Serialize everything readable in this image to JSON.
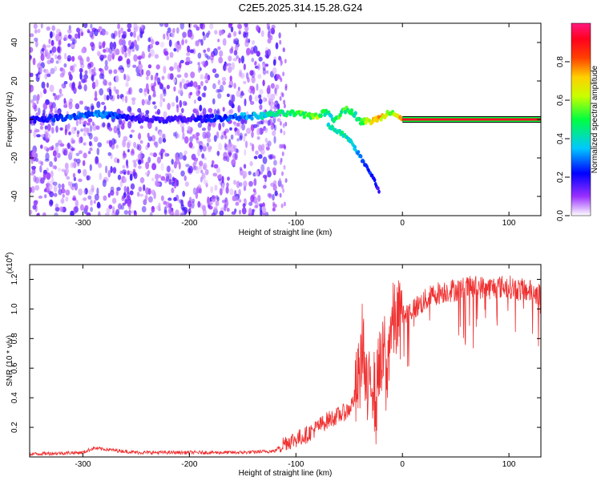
{
  "page": {
    "title": "C2E5.2025.314.15.28.G24"
  },
  "chart_data": [
    {
      "type": "heatmap",
      "title": "C2E5.2025.314.15.28.G24",
      "xlabel": "Height of straight line (km)",
      "ylabel": "Frequency (Hz)",
      "xlim": [
        -350,
        130
      ],
      "ylim": [
        -50,
        50
      ],
      "x_ticks": [
        -300,
        -200,
        -100,
        0,
        100
      ],
      "x_tick_labels": [
        "-300",
        "-200",
        "-100",
        "0",
        "100"
      ],
      "y_ticks": [
        -40,
        -20,
        0,
        20,
        40
      ],
      "y_tick_labels": [
        "-40",
        "-20",
        "0",
        "20",
        "40"
      ],
      "colorbar": {
        "label": "Normalized spectral amplitude",
        "range": [
          0,
          1
        ],
        "ticks": [
          0.0,
          0.2,
          0.4,
          0.6,
          0.8
        ],
        "tick_labels": [
          "0.0",
          "0.2",
          "0.4",
          "0.6",
          "0.8"
        ],
        "colors": [
          "#ffffff",
          "#8000ff",
          "#0000ff",
          "#00ffff",
          "#00ff00",
          "#ffff00",
          "#ff8000",
          "#ff0000",
          "#ff1493"
        ]
      },
      "noise_region": {
        "x_range": [
          -350,
          -115
        ],
        "y_range": [
          -50,
          50
        ],
        "amplitude": 0.15
      },
      "ridge": {
        "x": [
          -350,
          -320,
          -290,
          -270,
          -250,
          -200,
          -165,
          -130,
          -120,
          -110,
          -100,
          -90,
          -80,
          -70,
          -65,
          -60,
          -55,
          -50,
          -45,
          -40,
          -35,
          -30,
          -25,
          -20,
          -15,
          -10,
          -5,
          0,
          10,
          50,
          100,
          130
        ],
        "freq": [
          0,
          1,
          3,
          2,
          0,
          0,
          1,
          2,
          3,
          3,
          3,
          2,
          2,
          4,
          0,
          2,
          5,
          5,
          3,
          -1,
          -1,
          -1,
          0,
          1,
          3,
          4,
          3,
          0,
          0,
          0,
          0,
          0
        ],
        "amplitude": [
          0.2,
          0.3,
          0.35,
          0.3,
          0.2,
          0.2,
          0.3,
          0.45,
          0.5,
          0.55,
          0.6,
          0.65,
          0.65,
          0.55,
          0.45,
          0.6,
          0.6,
          0.55,
          0.5,
          0.6,
          0.7,
          0.75,
          0.8,
          0.8,
          0.7,
          0.6,
          0.7,
          0.9,
          0.92,
          0.92,
          0.92,
          0.92
        ]
      },
      "branch": {
        "x": [
          -70,
          -62,
          -55,
          -48,
          -42,
          -38,
          -32,
          -26,
          -22
        ],
        "freq": [
          -3,
          -6,
          -8,
          -12,
          -17,
          -21,
          -26,
          -32,
          -38
        ],
        "amplitude": [
          0.45,
          0.5,
          0.5,
          0.45,
          0.4,
          0.35,
          0.3,
          0.25,
          0.2
        ]
      },
      "tone": {
        "x_range": [
          0,
          130
        ],
        "freq": 0,
        "amplitude": 0.92
      }
    },
    {
      "type": "line",
      "xlabel": "Height of straight line (km)",
      "ylabel": "SNR (10 * v/v)",
      "scale_label": "(x10",
      "scale_exponent": "4",
      "xlim": [
        -350,
        130
      ],
      "ylim": [
        0,
        1.3
      ],
      "x_ticks": [
        -300,
        -200,
        -100,
        0,
        100
      ],
      "x_tick_labels": [
        "-300",
        "-200",
        "-100",
        "0",
        "100"
      ],
      "y_ticks": [
        0.2,
        0.4,
        0.6,
        0.8,
        1.0,
        1.2
      ],
      "y_tick_labels": [
        "0.2",
        "0.4",
        "0.6",
        "0.8",
        "1.0",
        "1.2"
      ],
      "color": "#f03030",
      "series": [
        {
          "x": [
            -350,
            -300,
            -290,
            -250,
            -200,
            -150,
            -120,
            -110,
            -100,
            -90,
            -80,
            -70,
            -60,
            -50,
            -45,
            -40,
            -37,
            -35,
            -32,
            -30,
            -27,
            -25,
            -22,
            -20,
            -17,
            -15,
            -12,
            -10,
            -5,
            0,
            10,
            20,
            30,
            40,
            50,
            60,
            70,
            80,
            90,
            100,
            110,
            120,
            130
          ],
          "values": [
            0.02,
            0.03,
            0.06,
            0.03,
            0.03,
            0.03,
            0.04,
            0.1,
            0.12,
            0.15,
            0.2,
            0.25,
            0.28,
            0.32,
            0.4,
            0.55,
            0.85,
            0.5,
            0.35,
            0.6,
            0.5,
            0.3,
            0.7,
            0.55,
            0.75,
            0.45,
            0.85,
            0.9,
            0.92,
            0.95,
            1.0,
            1.05,
            1.1,
            1.12,
            1.13,
            1.14,
            1.15,
            1.14,
            1.15,
            1.15,
            1.13,
            1.12,
            1.1
          ]
        }
      ]
    }
  ]
}
